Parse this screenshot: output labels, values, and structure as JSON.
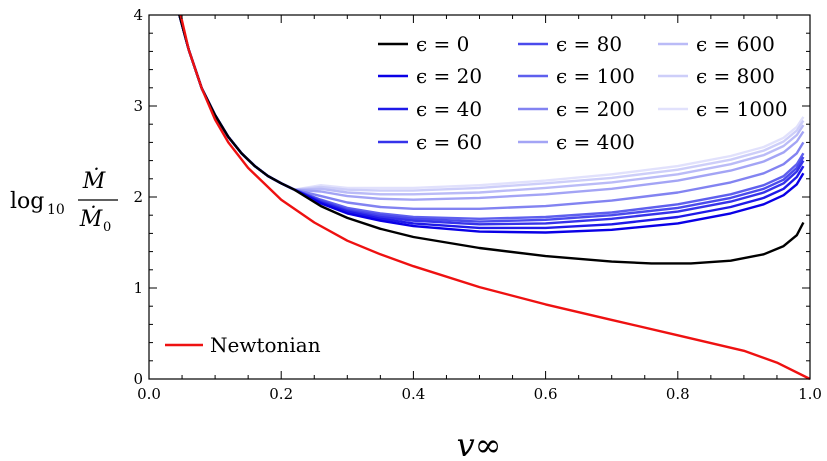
{
  "chart_data": {
    "type": "line",
    "xlabel": "v∞",
    "ylabel": {
      "prefix": "log",
      "sub": "10",
      "num": "Ṁ",
      "den": "Ṁ",
      "den_sub": "0"
    },
    "xlim": [
      0,
      1
    ],
    "ylim": [
      0,
      4
    ],
    "x_ticks": [
      "0.0",
      "0.2",
      "0.4",
      "0.6",
      "0.8",
      "1.0"
    ],
    "y_ticks": [
      "0",
      "1",
      "2",
      "3",
      "4"
    ],
    "grid": false,
    "legend_placement": "top-right",
    "common_curve": {
      "x": [
        0.046,
        0.06,
        0.08,
        0.1,
        0.12,
        0.14,
        0.16,
        0.18,
        0.2,
        0.22
      ],
      "y": [
        4.0,
        3.62,
        3.19,
        2.9,
        2.66,
        2.48,
        2.34,
        2.23,
        2.15,
        2.08
      ]
    },
    "series": [
      {
        "name": "ϵ = 0",
        "color": "#000000",
        "x": [
          0.22,
          0.26,
          0.3,
          0.35,
          0.4,
          0.5,
          0.6,
          0.7,
          0.76,
          0.82,
          0.88,
          0.93,
          0.96,
          0.98,
          0.99
        ],
        "y": [
          2.08,
          1.9,
          1.77,
          1.65,
          1.56,
          1.44,
          1.35,
          1.29,
          1.27,
          1.27,
          1.3,
          1.37,
          1.46,
          1.58,
          1.72
        ]
      },
      {
        "name": "ϵ = 20",
        "color": "#0a00e6",
        "x": [
          0.22,
          0.26,
          0.3,
          0.35,
          0.4,
          0.5,
          0.6,
          0.7,
          0.8,
          0.88,
          0.93,
          0.96,
          0.98,
          0.99
        ],
        "y": [
          2.08,
          1.93,
          1.82,
          1.74,
          1.68,
          1.62,
          1.61,
          1.64,
          1.71,
          1.82,
          1.92,
          2.02,
          2.14,
          2.26
        ]
      },
      {
        "name": "ϵ = 40",
        "color": "#1f1ae8",
        "x": [
          0.22,
          0.26,
          0.3,
          0.35,
          0.4,
          0.5,
          0.6,
          0.7,
          0.8,
          0.88,
          0.93,
          0.96,
          0.98,
          0.99
        ],
        "y": [
          2.09,
          1.94,
          1.84,
          1.76,
          1.71,
          1.66,
          1.66,
          1.7,
          1.78,
          1.89,
          1.99,
          2.09,
          2.22,
          2.34
        ]
      },
      {
        "name": "ϵ = 60",
        "color": "#3633ea",
        "x": [
          0.22,
          0.26,
          0.3,
          0.35,
          0.4,
          0.5,
          0.6,
          0.7,
          0.8,
          0.88,
          0.93,
          0.96,
          0.98,
          0.99
        ],
        "y": [
          2.09,
          1.95,
          1.85,
          1.78,
          1.74,
          1.7,
          1.71,
          1.76,
          1.84,
          1.95,
          2.05,
          2.15,
          2.28,
          2.4
        ]
      },
      {
        "name": "ϵ = 80",
        "color": "#4a4aec",
        "x": [
          0.22,
          0.26,
          0.3,
          0.35,
          0.4,
          0.5,
          0.6,
          0.7,
          0.8,
          0.88,
          0.93,
          0.96,
          0.98,
          0.99
        ],
        "y": [
          2.1,
          1.96,
          1.86,
          1.8,
          1.76,
          1.73,
          1.75,
          1.8,
          1.88,
          1.99,
          2.09,
          2.19,
          2.32,
          2.44
        ]
      },
      {
        "name": "ϵ = 100",
        "color": "#5e5fee",
        "x": [
          0.22,
          0.26,
          0.3,
          0.35,
          0.4,
          0.5,
          0.6,
          0.7,
          0.8,
          0.88,
          0.93,
          0.96,
          0.98,
          0.99
        ],
        "y": [
          2.1,
          1.97,
          1.88,
          1.82,
          1.78,
          1.76,
          1.78,
          1.83,
          1.92,
          2.03,
          2.13,
          2.23,
          2.36,
          2.48
        ]
      },
      {
        "name": "ϵ = 200",
        "color": "#8283f1",
        "x": [
          0.22,
          0.26,
          0.3,
          0.35,
          0.4,
          0.5,
          0.6,
          0.7,
          0.8,
          0.88,
          0.93,
          0.96,
          0.98,
          0.99
        ],
        "y": [
          2.12,
          2.01,
          1.94,
          1.89,
          1.87,
          1.87,
          1.9,
          1.96,
          2.05,
          2.16,
          2.26,
          2.36,
          2.48,
          2.6
        ]
      },
      {
        "name": "ϵ = 400",
        "color": "#a3a4f5",
        "x": [
          0.22,
          0.26,
          0.3,
          0.35,
          0.4,
          0.5,
          0.6,
          0.7,
          0.8,
          0.88,
          0.93,
          0.96,
          0.98,
          0.99
        ],
        "y": [
          2.14,
          2.06,
          2.01,
          1.98,
          1.97,
          1.99,
          2.03,
          2.09,
          2.18,
          2.29,
          2.39,
          2.49,
          2.61,
          2.72
        ]
      },
      {
        "name": "ϵ = 600",
        "color": "#babbf7",
        "x": [
          0.22,
          0.26,
          0.3,
          0.35,
          0.4,
          0.5,
          0.6,
          0.7,
          0.8,
          0.88,
          0.93,
          0.96,
          0.98,
          0.99
        ],
        "y": [
          2.15,
          2.09,
          2.05,
          2.03,
          2.03,
          2.05,
          2.1,
          2.16,
          2.25,
          2.36,
          2.46,
          2.56,
          2.68,
          2.79
        ]
      },
      {
        "name": "ϵ = 800",
        "color": "#cdcef9",
        "x": [
          0.22,
          0.26,
          0.3,
          0.35,
          0.4,
          0.5,
          0.6,
          0.7,
          0.8,
          0.88,
          0.93,
          0.96,
          0.98,
          0.99
        ],
        "y": [
          2.16,
          2.11,
          2.08,
          2.07,
          2.07,
          2.1,
          2.15,
          2.21,
          2.3,
          2.41,
          2.51,
          2.61,
          2.73,
          2.84
        ]
      },
      {
        "name": "ϵ = 1000",
        "color": "#e1e1fc",
        "x": [
          0.22,
          0.26,
          0.3,
          0.35,
          0.4,
          0.5,
          0.6,
          0.7,
          0.8,
          0.88,
          0.93,
          0.96,
          0.98,
          0.99
        ],
        "y": [
          2.17,
          2.13,
          2.1,
          2.1,
          2.1,
          2.13,
          2.18,
          2.25,
          2.34,
          2.45,
          2.55,
          2.65,
          2.77,
          2.88
        ]
      },
      {
        "name": "Newtonian",
        "color": "#ee1111",
        "x": [
          0.048,
          0.06,
          0.08,
          0.1,
          0.12,
          0.15,
          0.2,
          0.25,
          0.3,
          0.35,
          0.4,
          0.5,
          0.6,
          0.7,
          0.8,
          0.9,
          0.95,
          1.0
        ],
        "y": [
          4.0,
          3.62,
          3.19,
          2.85,
          2.6,
          2.32,
          1.97,
          1.72,
          1.52,
          1.37,
          1.24,
          1.01,
          0.82,
          0.65,
          0.48,
          0.31,
          0.18,
          0.0
        ]
      }
    ]
  }
}
